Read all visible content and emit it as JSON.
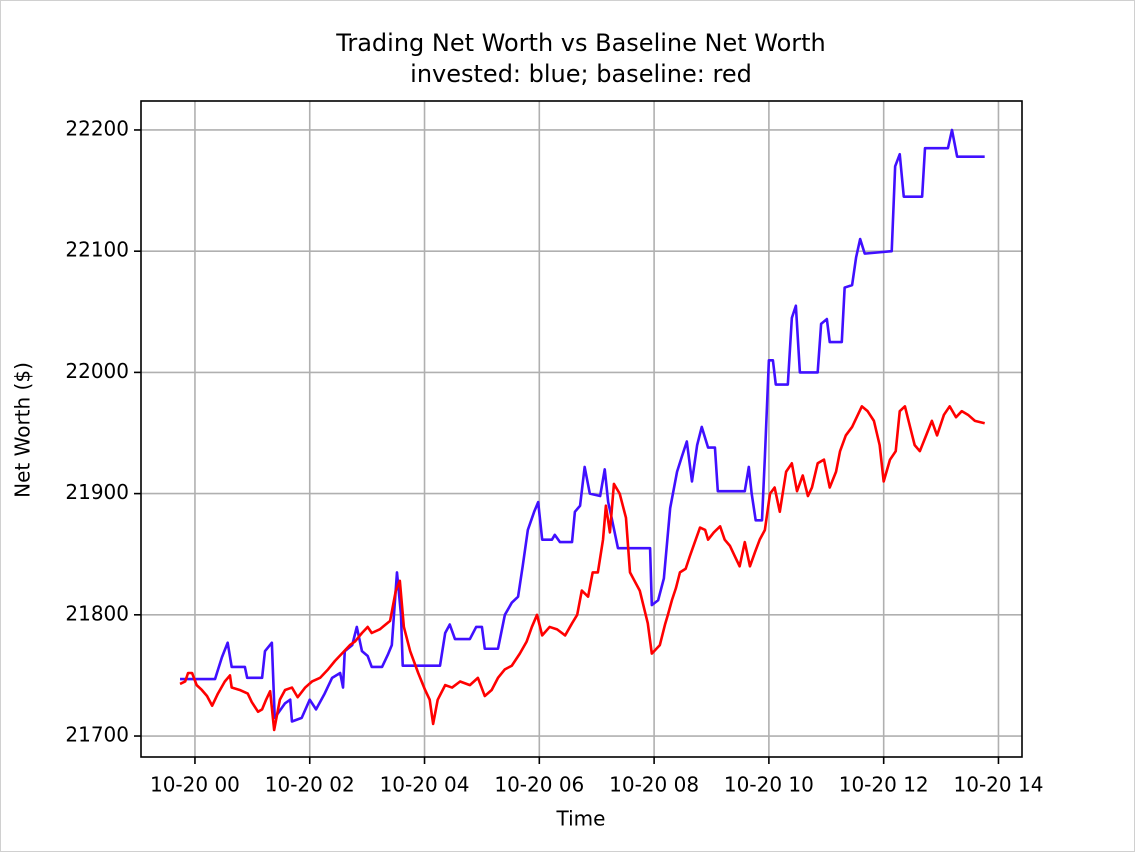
{
  "chart_data": {
    "type": "line",
    "title": "Trading Net Worth vs Baseline Net Worth",
    "subtitle": "invested: blue; baseline: red",
    "xlabel": "Time",
    "ylabel": "Net Worth ($)",
    "xlim": [
      -0.94,
      14.41
    ],
    "ylim": [
      21682.7,
      22223.9
    ],
    "xticks": [
      {
        "value": 0,
        "label": "10-20 00"
      },
      {
        "value": 2,
        "label": "10-20 02"
      },
      {
        "value": 4,
        "label": "10-20 04"
      },
      {
        "value": 6,
        "label": "10-20 06"
      },
      {
        "value": 8,
        "label": "10-20 08"
      },
      {
        "value": 10,
        "label": "10-20 10"
      },
      {
        "value": 12,
        "label": "10-20 12"
      },
      {
        "value": 14,
        "label": "10-20 14"
      }
    ],
    "yticks": [
      21700,
      21800,
      21900,
      22000,
      22100,
      22200
    ],
    "grid": true,
    "series": [
      {
        "color": "#4010ff",
        "x": [
          -0.26,
          0.35,
          0.47,
          0.57,
          0.64,
          0.87,
          0.91,
          1.17,
          1.22,
          1.34,
          1.39,
          1.57,
          1.66,
          1.69,
          1.86,
          2.0,
          2.11,
          2.26,
          2.39,
          2.53,
          2.58,
          2.61,
          2.74,
          2.82,
          2.91,
          3.01,
          3.08,
          3.26,
          3.36,
          3.43,
          3.52,
          3.59,
          3.62,
          4.27,
          4.36,
          4.44,
          4.53,
          4.79,
          4.9,
          5.0,
          5.05,
          5.28,
          5.4,
          5.52,
          5.63,
          5.71,
          5.8,
          5.91,
          5.98,
          6.05,
          6.22,
          6.27,
          6.36,
          6.57,
          6.62,
          6.71,
          6.79,
          6.88,
          7.06,
          7.14,
          7.2,
          7.26,
          7.37,
          7.93,
          7.96,
          8.07,
          8.17,
          8.28,
          8.4,
          8.48,
          8.57,
          8.66,
          8.75,
          8.83,
          8.94,
          9.06,
          9.11,
          9.58,
          9.65,
          9.7,
          9.77,
          9.88,
          9.93,
          10.0,
          10.07,
          10.12,
          10.33,
          10.4,
          10.47,
          10.54,
          10.85,
          10.91,
          11.01,
          11.06,
          11.27,
          11.32,
          11.45,
          11.52,
          11.59,
          11.67,
          12.14,
          12.2,
          12.28,
          12.35,
          12.67,
          12.72,
          13.12,
          13.19,
          13.28,
          13.76
        ],
        "values": [
          21747,
          21747,
          21765,
          21777,
          21757,
          21757,
          21748,
          21748,
          21770,
          21777,
          21715,
          21727,
          21730,
          21712,
          21715,
          21730,
          21722,
          21735,
          21748,
          21752,
          21740,
          21770,
          21775,
          21790,
          21770,
          21766,
          21757,
          21757,
          21767,
          21775,
          21835,
          21800,
          21758,
          21758,
          21785,
          21792,
          21780,
          21780,
          21790,
          21790,
          21772,
          21772,
          21800,
          21810,
          21815,
          21840,
          21870,
          21885,
          21893,
          21862,
          21862,
          21866,
          21860,
          21860,
          21885,
          21890,
          21922,
          21900,
          21898,
          21920,
          21893,
          21880,
          21855,
          21855,
          21808,
          21812,
          21830,
          21888,
          21918,
          21930,
          21943,
          21910,
          21940,
          21955,
          21938,
          21938,
          21902,
          21902,
          21922,
          21900,
          21878,
          21878,
          21930,
          22010,
          22010,
          21990,
          21990,
          22045,
          22055,
          22000,
          22000,
          22040,
          22044,
          22025,
          22025,
          22070,
          22072,
          22095,
          22110,
          22098,
          22100,
          22170,
          22180,
          22145,
          22145,
          22185,
          22185,
          22200,
          22178,
          22178
        ]
      },
      {
        "color": "#ff0000",
        "x": [
          -0.26,
          -0.17,
          -0.12,
          -0.05,
          0.03,
          0.12,
          0.21,
          0.3,
          0.4,
          0.52,
          0.61,
          0.64,
          0.78,
          0.92,
          0.99,
          1.1,
          1.17,
          1.24,
          1.31,
          1.38,
          1.48,
          1.57,
          1.69,
          1.79,
          1.92,
          2.04,
          2.18,
          2.32,
          2.44,
          2.56,
          2.7,
          2.79,
          2.91,
          3.01,
          3.08,
          3.22,
          3.4,
          3.5,
          3.57,
          3.64,
          3.75,
          3.89,
          4.01,
          4.09,
          4.15,
          4.23,
          4.36,
          4.48,
          4.62,
          4.79,
          4.93,
          5.05,
          5.17,
          5.28,
          5.4,
          5.52,
          5.66,
          5.78,
          5.87,
          5.96,
          6.05,
          6.18,
          6.31,
          6.45,
          6.57,
          6.66,
          6.74,
          6.85,
          6.93,
          7.02,
          7.11,
          7.16,
          7.23,
          7.3,
          7.4,
          7.51,
          7.58,
          7.75,
          7.89,
          7.96,
          8.1,
          8.19,
          8.24,
          8.31,
          8.38,
          8.45,
          8.55,
          8.62,
          8.71,
          8.8,
          8.89,
          8.94,
          9.04,
          9.15,
          9.23,
          9.32,
          9.41,
          9.49,
          9.58,
          9.67,
          9.76,
          9.84,
          9.93,
          10.02,
          10.1,
          10.19,
          10.3,
          10.4,
          10.49,
          10.59,
          10.68,
          10.75,
          10.85,
          10.96,
          11.06,
          11.17,
          11.24,
          11.34,
          11.45,
          11.55,
          11.62,
          11.72,
          11.83,
          11.93,
          12.0,
          12.11,
          12.21,
          12.28,
          12.37,
          12.46,
          12.54,
          12.63,
          12.74,
          12.84,
          12.93,
          13.05,
          13.15,
          13.26,
          13.36,
          13.47,
          13.59,
          13.76
        ],
        "values": [
          21743,
          21745,
          21752,
          21752,
          21742,
          21738,
          21733,
          21725,
          21735,
          21745,
          21750,
          21740,
          21738,
          21735,
          21728,
          21720,
          21722,
          21730,
          21737,
          21705,
          21730,
          21738,
          21740,
          21732,
          21740,
          21745,
          21748,
          21755,
          21762,
          21768,
          21775,
          21778,
          21785,
          21790,
          21785,
          21788,
          21795,
          21820,
          21828,
          21790,
          21770,
          21752,
          21738,
          21730,
          21710,
          21730,
          21742,
          21740,
          21745,
          21742,
          21748,
          21733,
          21738,
          21748,
          21755,
          21758,
          21768,
          21778,
          21790,
          21800,
          21783,
          21790,
          21788,
          21783,
          21793,
          21800,
          21820,
          21815,
          21835,
          21835,
          21862,
          21890,
          21868,
          21908,
          21900,
          21880,
          21835,
          21820,
          21793,
          21768,
          21775,
          21792,
          21800,
          21812,
          21822,
          21835,
          21838,
          21848,
          21860,
          21872,
          21870,
          21862,
          21868,
          21873,
          21862,
          21857,
          21848,
          21840,
          21860,
          21840,
          21852,
          21862,
          21870,
          21900,
          21905,
          21885,
          21918,
          21925,
          21902,
          21915,
          21898,
          21905,
          21925,
          21928,
          21905,
          21918,
          21935,
          21948,
          21955,
          21965,
          21972,
          21968,
          21960,
          21940,
          21910,
          21928,
          21935,
          21968,
          21972,
          21955,
          21940,
          21935,
          21948,
          21960,
          21948,
          21965,
          21972,
          21963,
          21968,
          21965,
          21960,
          21958
        ]
      }
    ]
  }
}
